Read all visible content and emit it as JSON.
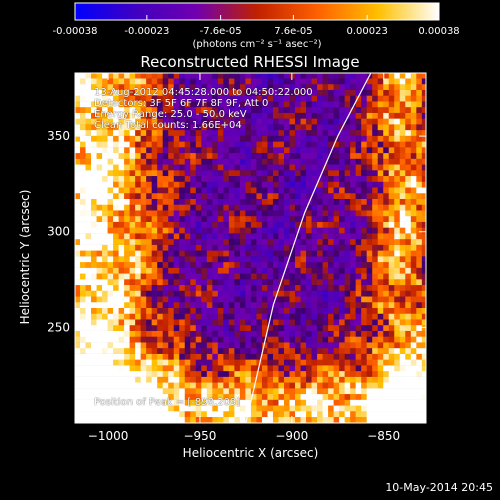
{
  "title": "Reconstructed RHESSI Image",
  "footer_timestamp": "10-May-2014 20:45",
  "colorbar": {
    "ticks": [
      "-0.00038",
      "-0.00023",
      "-7.6e-05",
      "7.6e-05",
      "0.00023",
      "0.00038"
    ],
    "tick_values": [
      -0.00038,
      -0.00023,
      -7.6e-05,
      7.6e-05,
      0.00023,
      0.00038
    ],
    "range": [
      -0.00038,
      0.00038
    ],
    "unit_label": "(photons cm⁻² s⁻¹ asec⁻²)",
    "colormap": [
      "#0000ff",
      "#4000c0",
      "#7000b0",
      "#c02000",
      "#ff6000",
      "#ffc000",
      "#ffffff"
    ]
  },
  "annotations": {
    "time_range": "13-Aug-2012 04:45:28.000 to 04:50:22.000",
    "detectors": "Detectors: 3F 5F 6F 7F 8F 9F, Att 0",
    "energy_range": "Energy Range: 25.0 - 50.0 keV",
    "method": "Clean     Total counts: 1.66E+04",
    "peak_position": "Position of Peak = [-898,209]"
  },
  "chart_data": {
    "type": "heatmap",
    "title": "Reconstructed RHESSI Image",
    "xlabel": "Heliocentric X (arcsec)",
    "ylabel": "Heliocentric Y (arcsec)",
    "xlim": [
      -1018,
      -827
    ],
    "ylim": [
      200,
      383
    ],
    "x_ticks": [
      -1000,
      -950,
      -900,
      -850
    ],
    "y_ticks": [
      250,
      300,
      350
    ],
    "x_tick_labels": [
      "−1000",
      "−950",
      "−900",
      "−850"
    ],
    "y_tick_labels": [
      "250",
      "300",
      "350"
    ],
    "limb_line": [
      [
        -925,
        200
      ],
      [
        -910,
        262
      ],
      [
        -893,
        310
      ],
      [
        -875,
        350
      ],
      [
        -857,
        383
      ]
    ],
    "limb_color": "#ffffff",
    "grid": false,
    "colorbar_position": "top"
  }
}
